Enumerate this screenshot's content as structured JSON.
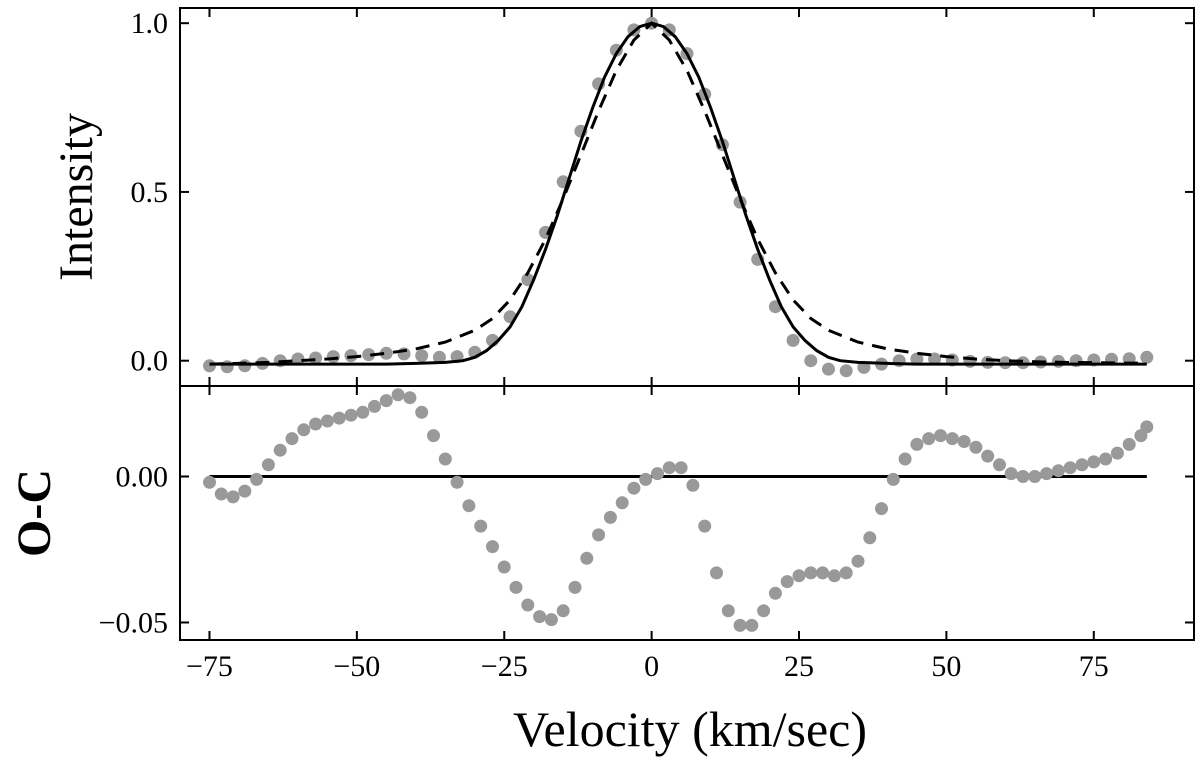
{
  "chart_data": [
    {
      "type": "line",
      "panel": "top",
      "title": "",
      "ylabel": "Intensity",
      "xlim": [
        -80,
        92
      ],
      "ylim": [
        -0.075,
        1.045
      ],
      "yticks": [
        0.0,
        0.5,
        1.0
      ],
      "ytick_labels": [
        "0.0",
        "0.5",
        "1.0"
      ],
      "series": [
        {
          "name": "observed",
          "style": "gray-dots",
          "color": "#999999",
          "x": [
            -75,
            -72,
            -69,
            -66,
            -63,
            -60,
            -57,
            -54,
            -51,
            -48,
            -45,
            -42,
            -39,
            -36,
            -33,
            -30,
            -27,
            -24,
            -21,
            -18,
            -15,
            -12,
            -9,
            -6,
            -3,
            0,
            3,
            6,
            9,
            12,
            15,
            18,
            21,
            24,
            27,
            30,
            33,
            36,
            39,
            42,
            45,
            48,
            51,
            54,
            57,
            60,
            63,
            66,
            69,
            72,
            75,
            78,
            81,
            84
          ],
          "y": [
            -0.015,
            -0.018,
            -0.015,
            -0.008,
            0.0,
            0.005,
            0.008,
            0.012,
            0.015,
            0.018,
            0.022,
            0.02,
            0.015,
            0.01,
            0.012,
            0.025,
            0.06,
            0.13,
            0.24,
            0.38,
            0.53,
            0.68,
            0.82,
            0.92,
            0.98,
            1.0,
            0.98,
            0.91,
            0.79,
            0.64,
            0.47,
            0.3,
            0.16,
            0.06,
            0.0,
            -0.025,
            -0.03,
            -0.02,
            -0.01,
            0.0,
            0.005,
            0.005,
            0.002,
            -0.002,
            -0.005,
            -0.006,
            -0.006,
            -0.004,
            -0.002,
            0.0,
            0.002,
            0.004,
            0.006,
            0.01
          ]
        },
        {
          "name": "model (solid)",
          "style": "solid",
          "color": "#000000",
          "x": [
            -75,
            -70,
            -65,
            -60,
            -55,
            -50,
            -45,
            -40,
            -35,
            -32,
            -30,
            -28,
            -26,
            -24,
            -22,
            -20,
            -18,
            -16,
            -14,
            -12,
            -10,
            -8,
            -6,
            -4,
            -2,
            0,
            2,
            4,
            6,
            8,
            10,
            12,
            14,
            16,
            18,
            20,
            22,
            24,
            26,
            28,
            30,
            32,
            35,
            40,
            45,
            50,
            55,
            60,
            65,
            70,
            75,
            80,
            84
          ],
          "y": [
            -0.01,
            -0.01,
            -0.01,
            -0.01,
            -0.01,
            -0.01,
            -0.01,
            -0.008,
            -0.005,
            0.0,
            0.01,
            0.03,
            0.06,
            0.1,
            0.16,
            0.24,
            0.33,
            0.43,
            0.54,
            0.65,
            0.75,
            0.84,
            0.91,
            0.96,
            0.99,
            1.0,
            0.99,
            0.96,
            0.91,
            0.84,
            0.75,
            0.65,
            0.54,
            0.43,
            0.33,
            0.24,
            0.16,
            0.1,
            0.06,
            0.03,
            0.01,
            0.0,
            -0.005,
            -0.008,
            -0.01,
            -0.01,
            -0.01,
            -0.01,
            -0.01,
            -0.01,
            -0.01,
            -0.01,
            -0.01
          ]
        },
        {
          "name": "model (dashed)",
          "style": "dashed",
          "color": "#000000",
          "x": [
            -75,
            -70,
            -65,
            -60,
            -55,
            -50,
            -45,
            -40,
            -35,
            -30,
            -27,
            -24,
            -21,
            -18,
            -15,
            -12,
            -9,
            -6,
            -3,
            0,
            3,
            6,
            9,
            12,
            15,
            18,
            21,
            24,
            27,
            30,
            35,
            40,
            45,
            50,
            55,
            60,
            65,
            70,
            75,
            80,
            84
          ],
          "y": [
            -0.01,
            -0.008,
            -0.005,
            0.0,
            0.005,
            0.012,
            0.022,
            0.035,
            0.055,
            0.09,
            0.125,
            0.18,
            0.26,
            0.36,
            0.48,
            0.61,
            0.74,
            0.86,
            0.95,
            1.0,
            0.95,
            0.86,
            0.74,
            0.61,
            0.48,
            0.36,
            0.26,
            0.18,
            0.125,
            0.09,
            0.055,
            0.035,
            0.022,
            0.012,
            0.005,
            0.0,
            -0.003,
            -0.005,
            -0.006,
            -0.007,
            -0.007
          ]
        }
      ]
    },
    {
      "type": "scatter",
      "panel": "bottom",
      "title": "",
      "xlabel": "Velocity (km/sec)",
      "ylabel": "O-C",
      "xlim": [
        -80,
        92
      ],
      "ylim": [
        -0.056,
        0.031
      ],
      "xticks": [
        -75,
        -50,
        -25,
        0,
        25,
        50,
        75
      ],
      "xtick_labels": [
        "−75",
        "−50",
        "−25",
        "0",
        "25",
        "50",
        "75"
      ],
      "yticks": [
        -0.05,
        0.0
      ],
      "ytick_labels": [
        "−0.05",
        "0.00"
      ],
      "reference_line": 0.0,
      "series": [
        {
          "name": "residuals",
          "style": "gray-dots",
          "color": "#999999",
          "x": [
            -75,
            -73,
            -71,
            -69,
            -67,
            -65,
            -63,
            -61,
            -59,
            -57,
            -55,
            -53,
            -51,
            -49,
            -47,
            -45,
            -43,
            -41,
            -39,
            -37,
            -35,
            -33,
            -31,
            -29,
            -27,
            -25,
            -23,
            -21,
            -19,
            -17,
            -15,
            -13,
            -11,
            -9,
            -7,
            -5,
            -3,
            -1,
            1,
            3,
            5,
            7,
            9,
            11,
            13,
            15,
            17,
            19,
            21,
            23,
            25,
            27,
            29,
            31,
            33,
            35,
            37,
            39,
            41,
            43,
            45,
            47,
            49,
            51,
            53,
            55,
            57,
            59,
            61,
            63,
            65,
            67,
            69,
            71,
            73,
            75,
            77,
            79,
            81,
            83,
            84
          ],
          "y": [
            -0.002,
            -0.006,
            -0.007,
            -0.005,
            -0.001,
            0.004,
            0.009,
            0.013,
            0.016,
            0.018,
            0.019,
            0.02,
            0.021,
            0.022,
            0.024,
            0.026,
            0.028,
            0.027,
            0.022,
            0.014,
            0.006,
            -0.002,
            -0.01,
            -0.017,
            -0.024,
            -0.031,
            -0.038,
            -0.044,
            -0.048,
            -0.049,
            -0.046,
            -0.038,
            -0.028,
            -0.02,
            -0.014,
            -0.009,
            -0.004,
            -0.001,
            0.001,
            0.003,
            0.003,
            -0.003,
            -0.017,
            -0.033,
            -0.046,
            -0.051,
            -0.051,
            -0.046,
            -0.04,
            -0.036,
            -0.034,
            -0.033,
            -0.033,
            -0.034,
            -0.033,
            -0.029,
            -0.021,
            -0.011,
            -0.001,
            0.006,
            0.011,
            0.013,
            0.014,
            0.013,
            0.012,
            0.01,
            0.007,
            0.004,
            0.001,
            0.0,
            0.0,
            0.001,
            0.002,
            0.003,
            0.004,
            0.005,
            0.006,
            0.008,
            0.011,
            0.014,
            0.017
          ]
        }
      ]
    }
  ]
}
